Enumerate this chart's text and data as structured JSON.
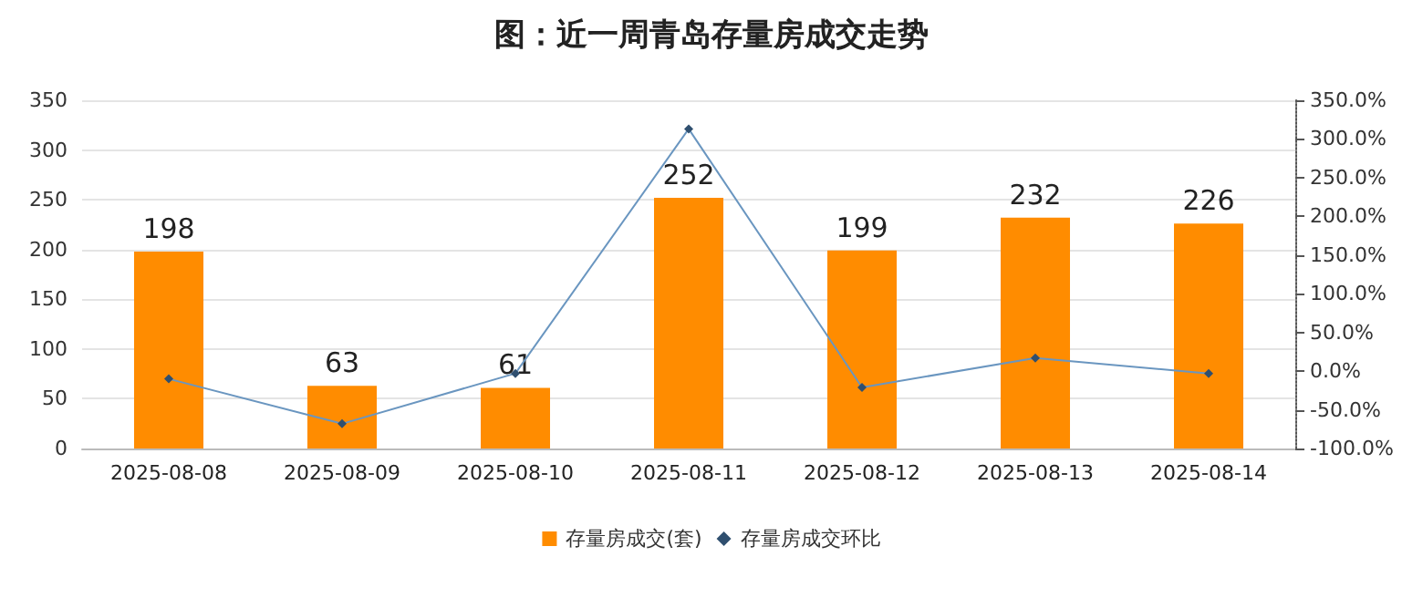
{
  "chart_data": {
    "type": "bar",
    "title": "图：近一周青岛存量房成交走势",
    "categories": [
      "2025-08-08",
      "2025-08-09",
      "2025-08-10",
      "2025-08-11",
      "2025-08-12",
      "2025-08-13",
      "2025-08-14"
    ],
    "series": [
      {
        "name": "存量房成交(套)",
        "color": "#ff8c00",
        "values": [
          198,
          63,
          61,
          252,
          199,
          232,
          226
        ],
        "data_labels": true
      },
      {
        "name": "存量房成交环比",
        "type": "line",
        "axis": "y2",
        "color": "#6a96c0",
        "marker": "diamond",
        "values": [
          -10,
          -68,
          -3,
          313,
          -21,
          17,
          -3
        ]
      }
    ],
    "ylim": [
      0,
      350
    ],
    "yticks": [
      0,
      50,
      100,
      150,
      200,
      250,
      300,
      350
    ],
    "y2lim": [
      -100,
      350
    ],
    "y2ticks": [
      {
        "value": -100,
        "label": "-100.0%"
      },
      {
        "value": -50,
        "label": "-50.0%"
      },
      {
        "value": 0,
        "label": "0.0%"
      },
      {
        "value": 50,
        "label": "50.0%"
      },
      {
        "value": 100,
        "label": "100.0%"
      },
      {
        "value": 150,
        "label": "150.0%"
      },
      {
        "value": 200,
        "label": "200.0%"
      },
      {
        "value": 250,
        "label": "250.0%"
      },
      {
        "value": 300,
        "label": "300.0%"
      },
      {
        "value": 350,
        "label": "350.0%"
      }
    ],
    "grid": "y",
    "legend": "bottom"
  }
}
